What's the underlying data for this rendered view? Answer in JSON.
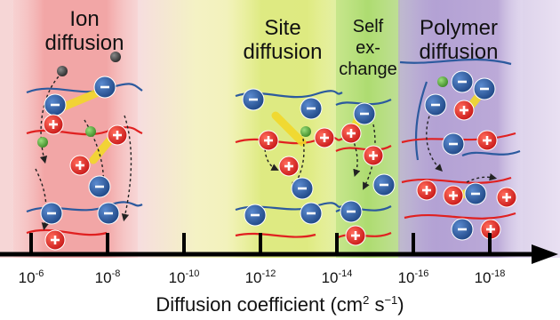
{
  "regimes": [
    {
      "label_lines": [
        "Ion",
        "diffusion"
      ],
      "color": "#f2a0a0"
    },
    {
      "label_lines": [
        "Site",
        "diffusion"
      ],
      "color": "#d8e87a"
    },
    {
      "label_lines": [
        "Self",
        "ex-",
        "change"
      ],
      "color": "#b8e07a"
    },
    {
      "label_lines": [
        "Polymer",
        "diffusion"
      ],
      "color": "#b9a6d6"
    }
  ],
  "axis": {
    "tick_labels": [
      {
        "base": "10",
        "exp": "-6"
      },
      {
        "base": "10",
        "exp": "-8"
      },
      {
        "base": "10",
        "exp": "-10"
      },
      {
        "base": "10",
        "exp": "-12"
      },
      {
        "base": "10",
        "exp": "-14"
      },
      {
        "base": "10",
        "exp": "-16"
      },
      {
        "base": "10",
        "exp": "-18"
      }
    ],
    "title_main": "Diffusion coefficient (cm",
    "title_sup1": "2",
    "title_mid": " s",
    "title_sup2": "−1",
    "title_end": ")"
  },
  "colors": {
    "cation": "#e02020",
    "anion": "#2c5a9e",
    "polycation_chain": "#e02020",
    "polyanion_chain": "#2c5a9e",
    "small_ion": "#5aa83c",
    "counter_ion": "#3a3a3a",
    "axis": "#000000"
  }
}
